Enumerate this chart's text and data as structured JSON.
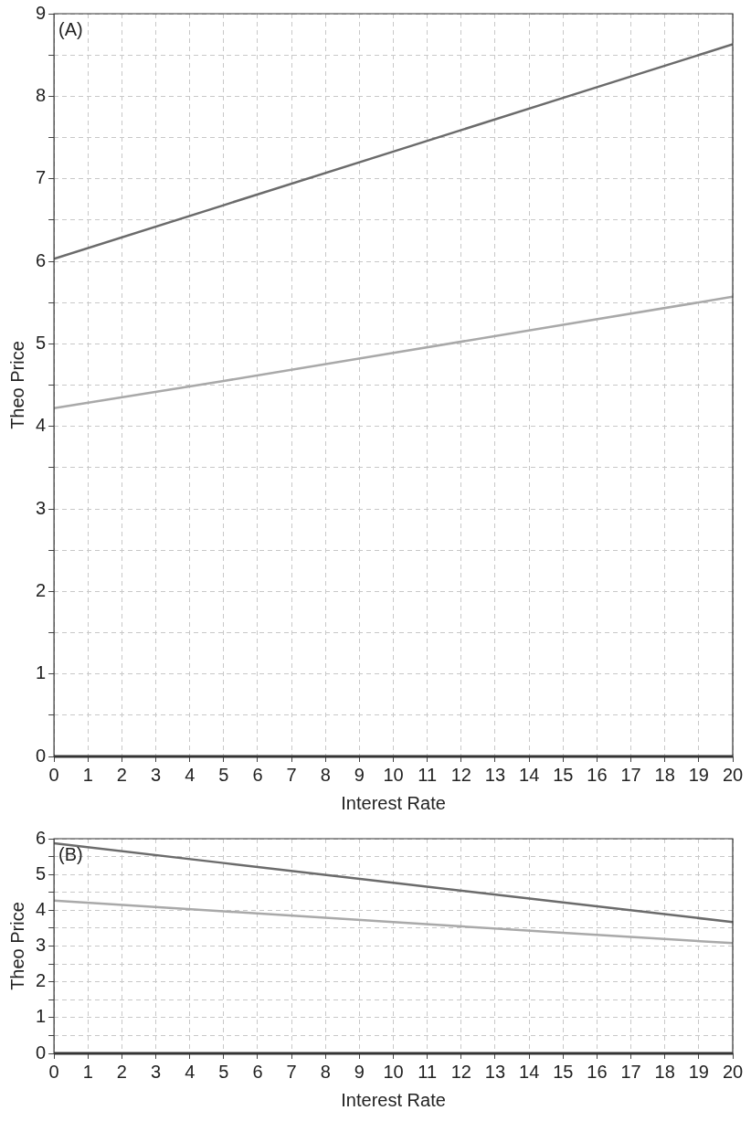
{
  "chart_data": [
    {
      "type": "line",
      "xlabel": "Interest Rate",
      "ylabel": "Theo Price",
      "annotations": [
        "(A)"
      ],
      "xlim": [
        0,
        20
      ],
      "xticks": [
        0,
        1,
        2,
        3,
        4,
        5,
        6,
        7,
        8,
        9,
        10,
        11,
        12,
        13,
        14,
        15,
        16,
        17,
        18,
        19,
        20
      ],
      "ylim": [
        0,
        9
      ],
      "yticks": [
        0,
        {
          "value": 0.5,
          "label": null
        },
        1,
        {
          "value": 1.5,
          "label": null
        },
        2,
        {
          "value": 2.5,
          "label": null
        },
        3,
        {
          "value": 3.5,
          "label": null
        },
        4,
        {
          "value": 4.5,
          "label": null
        },
        5,
        {
          "value": 5.5,
          "label": null
        },
        6,
        {
          "value": 6.5,
          "label": null
        },
        7,
        {
          "value": 7.5,
          "label": null
        },
        8,
        {
          "value": 8.5,
          "label": null
        },
        9
      ],
      "grid": true,
      "legend": false,
      "marker": "none",
      "line_style": "solid",
      "x": [
        0,
        5,
        10,
        15,
        20
      ],
      "series": [
        {
          "color": "#6b6b6b",
          "values": [
            6.03,
            6.68,
            7.33,
            7.98,
            8.63
          ]
        },
        {
          "color": "#a9a9a9",
          "values": [
            4.22,
            4.55,
            4.89,
            5.23,
            5.57
          ]
        }
      ]
    },
    {
      "type": "line",
      "xlabel": "Interest Rate",
      "ylabel": "Theo Price",
      "annotations": [
        "(B)"
      ],
      "xlim": [
        0,
        20
      ],
      "xticks": [
        0,
        1,
        2,
        3,
        4,
        5,
        6,
        7,
        8,
        9,
        10,
        11,
        12,
        13,
        14,
        15,
        16,
        17,
        18,
        19,
        20
      ],
      "ylim": [
        0,
        6
      ],
      "yticks": [
        0,
        {
          "value": 0.5,
          "label": null
        },
        1,
        {
          "value": 1.5,
          "label": null
        },
        2,
        {
          "value": 2.5,
          "label": null
        },
        3,
        {
          "value": 3.5,
          "label": null
        },
        4,
        {
          "value": 4.5,
          "label": null
        },
        5,
        {
          "value": 5.5,
          "label": null
        },
        6
      ],
      "grid": true,
      "legend": false,
      "marker": "none",
      "line_style": "solid",
      "x": [
        0,
        5,
        10,
        15,
        20
      ],
      "series": [
        {
          "color": "#6b6b6b",
          "values": [
            5.87,
            5.32,
            4.77,
            4.22,
            3.67
          ]
        },
        {
          "color": "#a9a9a9",
          "values": [
            4.27,
            3.97,
            3.67,
            3.37,
            3.08
          ]
        }
      ]
    }
  ]
}
